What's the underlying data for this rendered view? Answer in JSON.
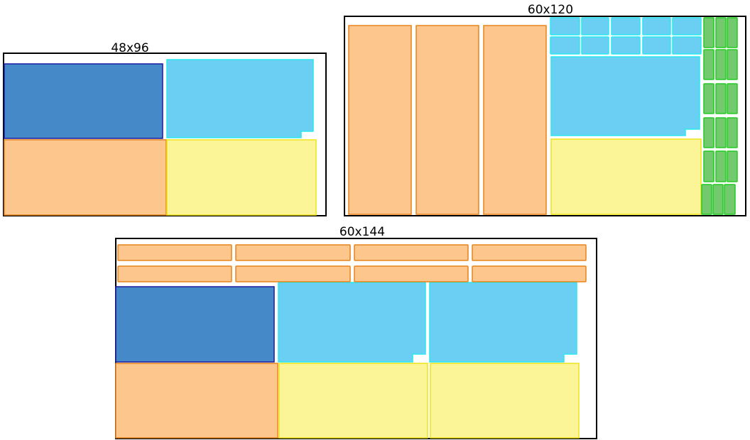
{
  "panels": [
    {
      "label": "48x96"
    },
    {
      "label": "60x120"
    },
    {
      "label": "60x144"
    }
  ]
}
